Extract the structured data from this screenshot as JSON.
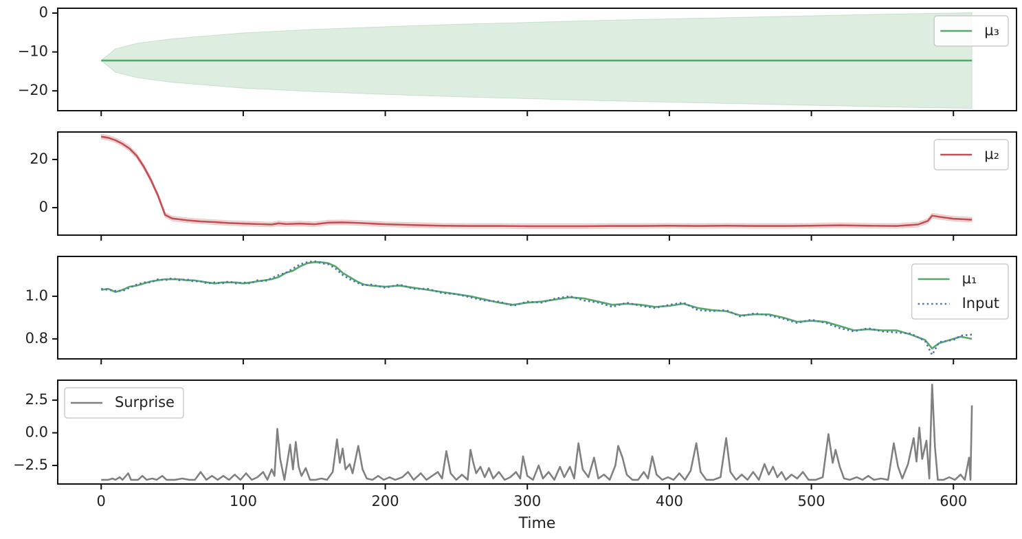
{
  "chart_data": [
    {
      "type": "line",
      "legend": "upper right",
      "xlim": [
        -30.6,
        644.4
      ],
      "ylim": [
        -25.1,
        1.24
      ],
      "yticks": [
        0,
        {
          "value": -10,
          "label": "−10"
        },
        {
          "value": -20,
          "label": "−20"
        }
      ],
      "x": [
        0,
        10,
        25,
        50,
        100,
        150,
        200,
        250,
        300,
        350,
        400,
        450,
        500,
        550,
        613
      ],
      "series": [
        {
          "name": "μ₃",
          "color": "#55a868",
          "values": [
            -12.2,
            -12.2,
            -12.2,
            -12.2,
            -12.2,
            -12.2,
            -12.2,
            -12.2,
            -12.2,
            -12.2,
            -12.2,
            -12.2,
            -12.2,
            -12.2,
            -12.2
          ],
          "band": {
            "lower": [
              -12.2,
              -15.2,
              -16.6,
              -17.8,
              -19.3,
              -20.2,
              -20.9,
              -21.5,
              -22,
              -22.5,
              -22.9,
              -23.3,
              -23.7,
              -24.1,
              -24.5
            ],
            "upper": [
              -12.2,
              -9.2,
              -7.8,
              -6.6,
              -5.1,
              -4.2,
              -3.5,
              -2.9,
              -2.4,
              -1.9,
              -1.5,
              -1.1,
              -0.7,
              -0.3,
              0.1
            ]
          }
        }
      ]
    },
    {
      "type": "line",
      "legend": "upper right",
      "xlim": [
        -30.6,
        644.4
      ],
      "ylim": [
        -11.4,
        31.4
      ],
      "yticks": [
        0,
        20
      ],
      "x": [
        0,
        5,
        10,
        15,
        20,
        25,
        30,
        35,
        40,
        45,
        50,
        60,
        70,
        80,
        90,
        100,
        110,
        120,
        125,
        130,
        140,
        150,
        160,
        170,
        180,
        190,
        200,
        220,
        240,
        260,
        280,
        300,
        320,
        340,
        360,
        380,
        400,
        420,
        440,
        460,
        480,
        500,
        520,
        540,
        560,
        575,
        582,
        585,
        590,
        600,
        613
      ],
      "series": [
        {
          "name": "μ₂",
          "color": "#c44e52",
          "values": [
            29.5,
            29,
            28,
            26.5,
            24.5,
            21.5,
            17,
            11.5,
            5,
            -3,
            -4.5,
            -5.2,
            -5.7,
            -6,
            -6.4,
            -6.6,
            -6.8,
            -7,
            -6.5,
            -6.8,
            -6.6,
            -6.9,
            -6.2,
            -6.1,
            -6.3,
            -6.6,
            -6.9,
            -7.2,
            -7.5,
            -7.6,
            -7.6,
            -7.7,
            -7.7,
            -7.7,
            -7.6,
            -7.6,
            -7.5,
            -7.6,
            -7.5,
            -7.6,
            -7.6,
            -7.5,
            -7.3,
            -7.5,
            -7.6,
            -7,
            -5.5,
            -3.3,
            -3.8,
            -4.6,
            -5
          ],
          "band": {
            "lower": [
              28.5,
              28,
              27,
              25.5,
              23.5,
              20.5,
              16,
              10.5,
              4,
              -4,
              -5.5,
              -6.2,
              -6.7,
              -7,
              -7.4,
              -7.6,
              -7.8,
              -8,
              -7.5,
              -7.8,
              -7.6,
              -7.9,
              -7.2,
              -7.1,
              -7.3,
              -7.6,
              -7.9,
              -8.2,
              -8.5,
              -8.6,
              -8.6,
              -8.7,
              -8.7,
              -8.7,
              -8.6,
              -8.6,
              -8.5,
              -8.6,
              -8.5,
              -8.6,
              -8.6,
              -8.5,
              -8.3,
              -8.5,
              -8.6,
              -8,
              -6.5,
              -4.3,
              -4.8,
              -5.6,
              -6
            ],
            "upper": [
              30.5,
              30,
              29,
              27.5,
              25.5,
              22.5,
              18,
              12.5,
              6,
              -2,
              -3.5,
              -4.2,
              -4.7,
              -5,
              -5.4,
              -5.6,
              -5.8,
              -6,
              -5.5,
              -5.8,
              -5.6,
              -5.9,
              -5.2,
              -5.1,
              -5.3,
              -5.6,
              -5.9,
              -6.2,
              -6.5,
              -6.6,
              -6.6,
              -6.7,
              -6.7,
              -6.7,
              -6.6,
              -6.6,
              -6.5,
              -6.6,
              -6.5,
              -6.6,
              -6.6,
              -6.5,
              -6.3,
              -6.5,
              -6.6,
              -6,
              -4.5,
              -2.3,
              -2.8,
              -3.6,
              -4
            ]
          }
        }
      ]
    },
    {
      "type": "line",
      "legend": "upper right",
      "xlim": [
        -30.6,
        644.4
      ],
      "ylim": [
        0.706,
        1.187
      ],
      "yticks": [
        0.8,
        {
          "value": 1.0,
          "label": "1.0"
        }
      ],
      "x": [
        0,
        5,
        10,
        15,
        20,
        25,
        30,
        35,
        40,
        45,
        50,
        55,
        60,
        65,
        70,
        75,
        80,
        85,
        90,
        95,
        100,
        105,
        110,
        115,
        120,
        125,
        130,
        135,
        140,
        145,
        150,
        155,
        160,
        165,
        170,
        175,
        180,
        185,
        190,
        200,
        210,
        220,
        230,
        240,
        250,
        260,
        270,
        280,
        290,
        300,
        310,
        320,
        330,
        340,
        350,
        360,
        370,
        380,
        390,
        400,
        410,
        420,
        430,
        440,
        450,
        460,
        470,
        480,
        490,
        500,
        510,
        520,
        530,
        540,
        550,
        560,
        570,
        580,
        585,
        590,
        600,
        605,
        613
      ],
      "series": [
        {
          "name": "μ₁",
          "color": "#55a868",
          "values": [
            1.03,
            1.035,
            1.02,
            1.03,
            1.045,
            1.05,
            1.06,
            1.07,
            1.075,
            1.08,
            1.08,
            1.08,
            1.075,
            1.075,
            1.07,
            1.065,
            1.06,
            1.065,
            1.065,
            1.065,
            1.06,
            1.065,
            1.07,
            1.075,
            1.08,
            1.09,
            1.11,
            1.12,
            1.14,
            1.155,
            1.16,
            1.16,
            1.155,
            1.14,
            1.11,
            1.09,
            1.07,
            1.055,
            1.05,
            1.045,
            1.05,
            1.04,
            1.03,
            1.02,
            1.01,
            1.0,
            0.985,
            0.97,
            0.96,
            0.97,
            0.975,
            0.985,
            0.995,
            0.99,
            0.975,
            0.96,
            0.965,
            0.96,
            0.95,
            0.955,
            0.965,
            0.945,
            0.935,
            0.93,
            0.91,
            0.915,
            0.915,
            0.9,
            0.88,
            0.885,
            0.88,
            0.86,
            0.84,
            0.845,
            0.84,
            0.84,
            0.82,
            0.795,
            0.755,
            0.78,
            0.8,
            0.81,
            0.8
          ]
        },
        {
          "name": "Input",
          "color": "#4c72b0",
          "style": "dotted",
          "values": [
            1.035,
            1.03,
            1.025,
            1.025,
            1.04,
            1.055,
            1.065,
            1.065,
            1.08,
            1.075,
            1.085,
            1.075,
            1.08,
            1.07,
            1.07,
            1.06,
            1.065,
            1.06,
            1.07,
            1.06,
            1.065,
            1.06,
            1.075,
            1.07,
            1.085,
            1.1,
            1.11,
            1.13,
            1.15,
            1.16,
            1.165,
            1.155,
            1.15,
            1.13,
            1.1,
            1.08,
            1.065,
            1.05,
            1.055,
            1.04,
            1.055,
            1.035,
            1.035,
            1.015,
            1.01,
            0.995,
            0.98,
            0.975,
            0.955,
            0.975,
            0.97,
            0.99,
            1.0,
            0.98,
            0.97,
            0.95,
            0.97,
            0.955,
            0.945,
            0.96,
            0.97,
            0.935,
            0.93,
            0.935,
            0.905,
            0.92,
            0.91,
            0.895,
            0.875,
            0.89,
            0.875,
            0.85,
            0.835,
            0.85,
            0.835,
            0.83,
            0.825,
            0.79,
            0.725,
            0.785,
            0.795,
            0.815,
            0.82
          ]
        }
      ]
    },
    {
      "type": "line",
      "legend": "upper left",
      "xlabel": "Time",
      "xlim": [
        -30.6,
        644.4
      ],
      "xticks": [
        0,
        100,
        200,
        300,
        400,
        500,
        600
      ],
      "ylim": [
        -3.92,
        4.03
      ],
      "yticks": [
        2.5,
        {
          "value": 0,
          "label": "0.0"
        },
        {
          "value": -2.5,
          "label": "−2.5"
        }
      ],
      "x": [
        0,
        5,
        8,
        10,
        13,
        15,
        19,
        21,
        26,
        29,
        32,
        36,
        39,
        43,
        46,
        52,
        57,
        62,
        66,
        70,
        74,
        78,
        82,
        86,
        90,
        94,
        98,
        102,
        106,
        110,
        114,
        117,
        120,
        122,
        124,
        126,
        129,
        133,
        135,
        137,
        139,
        141,
        144,
        147,
        151,
        155,
        159,
        163,
        166,
        168,
        170,
        172,
        175,
        177,
        181,
        184,
        187,
        191,
        195,
        199,
        203,
        207,
        212,
        216,
        220,
        225,
        229,
        233,
        237,
        240,
        243,
        246,
        250,
        254,
        258,
        260,
        262,
        264,
        267,
        270,
        273,
        276,
        280,
        284,
        288,
        292,
        295,
        297,
        300,
        304,
        308,
        311,
        315,
        319,
        323,
        326,
        330,
        333,
        336,
        339,
        343,
        347,
        350,
        354,
        358,
        362,
        364,
        367,
        370,
        374,
        378,
        382,
        385,
        388,
        391,
        395,
        399,
        403,
        407,
        411,
        415,
        419,
        422,
        426,
        431,
        436,
        440,
        443,
        447,
        451,
        455,
        459,
        463,
        467,
        470,
        473,
        476,
        479,
        482,
        486,
        490,
        494,
        498,
        503,
        508,
        512,
        515,
        517,
        520,
        523,
        527,
        532,
        536,
        540,
        544,
        549,
        554,
        558,
        561,
        564,
        568,
        572,
        574,
        576,
        578,
        581,
        583,
        585,
        587,
        589,
        593,
        597,
        601,
        605,
        608,
        611,
        612,
        613
      ],
      "series": [
        {
          "name": "Surprise",
          "color": "#808080",
          "values": [
            -3.6,
            -3.6,
            -3.5,
            -3.6,
            -3.4,
            -3.6,
            -3.1,
            -3.6,
            -3.6,
            -3.3,
            -3.6,
            -3.5,
            -3.6,
            -3.3,
            -3.6,
            -3.6,
            -3.5,
            -3.6,
            -3.6,
            -3.0,
            -3.6,
            -3.3,
            -3.6,
            -3.3,
            -3.6,
            -3.2,
            -3.6,
            -3.1,
            -3.6,
            -3.4,
            -3.0,
            -3.6,
            -2.8,
            -3.3,
            0.3,
            -2.0,
            -3.6,
            -0.9,
            -2.8,
            -0.7,
            -2.6,
            -3.3,
            -2.7,
            -3.6,
            -3.6,
            -3.5,
            -3.6,
            -3.0,
            -0.5,
            -2.3,
            -1.2,
            -2.8,
            -2.4,
            -3.1,
            -1.0,
            -2.8,
            -3.5,
            -3.6,
            -3.3,
            -3.6,
            -3.4,
            -3.6,
            -3.4,
            -3.0,
            -3.6,
            -3.1,
            -3.6,
            -3.3,
            -3.0,
            -3.5,
            -1.4,
            -3.1,
            -3.6,
            -3.2,
            -3.6,
            -1.3,
            -2.3,
            -3.1,
            -2.6,
            -3.4,
            -2.7,
            -3.5,
            -3.0,
            -3.6,
            -3.4,
            -3.0,
            -3.5,
            -1.8,
            -3.3,
            -3.6,
            -2.5,
            -3.5,
            -3.0,
            -3.6,
            -2.6,
            -3.4,
            -2.6,
            -3.5,
            -0.8,
            -2.8,
            -3.4,
            -1.9,
            -3.5,
            -3.2,
            -3.6,
            -2.5,
            -1.0,
            -1.9,
            -3.2,
            -3.6,
            -3.6,
            -3.0,
            -3.5,
            -1.8,
            -3.2,
            -3.6,
            -3.4,
            -3.6,
            -3.1,
            -3.6,
            -2.9,
            -0.8,
            -3.0,
            -3.6,
            -3.6,
            -3.4,
            -0.4,
            -3.0,
            -3.6,
            -3.2,
            -3.6,
            -3.0,
            -3.6,
            -2.4,
            -3.2,
            -2.6,
            -3.4,
            -3.0,
            -3.6,
            -3.2,
            -3.5,
            -3.0,
            -3.6,
            -3.6,
            -3.4,
            -0.1,
            -2.3,
            -1.3,
            -2.6,
            -3.5,
            -3.6,
            -3.4,
            -3.6,
            -3.3,
            -3.6,
            -3.5,
            -3.6,
            -0.8,
            -2.6,
            -3.5,
            -2.4,
            -0.4,
            -2.2,
            0.4,
            -2.0,
            -0.6,
            -3.5,
            3.7,
            -1.1,
            -3.6,
            -3.6,
            -3.4,
            -3.6,
            -3.2,
            -3.6,
            -1.9,
            -3.6,
            2.1
          ]
        }
      ]
    }
  ]
}
